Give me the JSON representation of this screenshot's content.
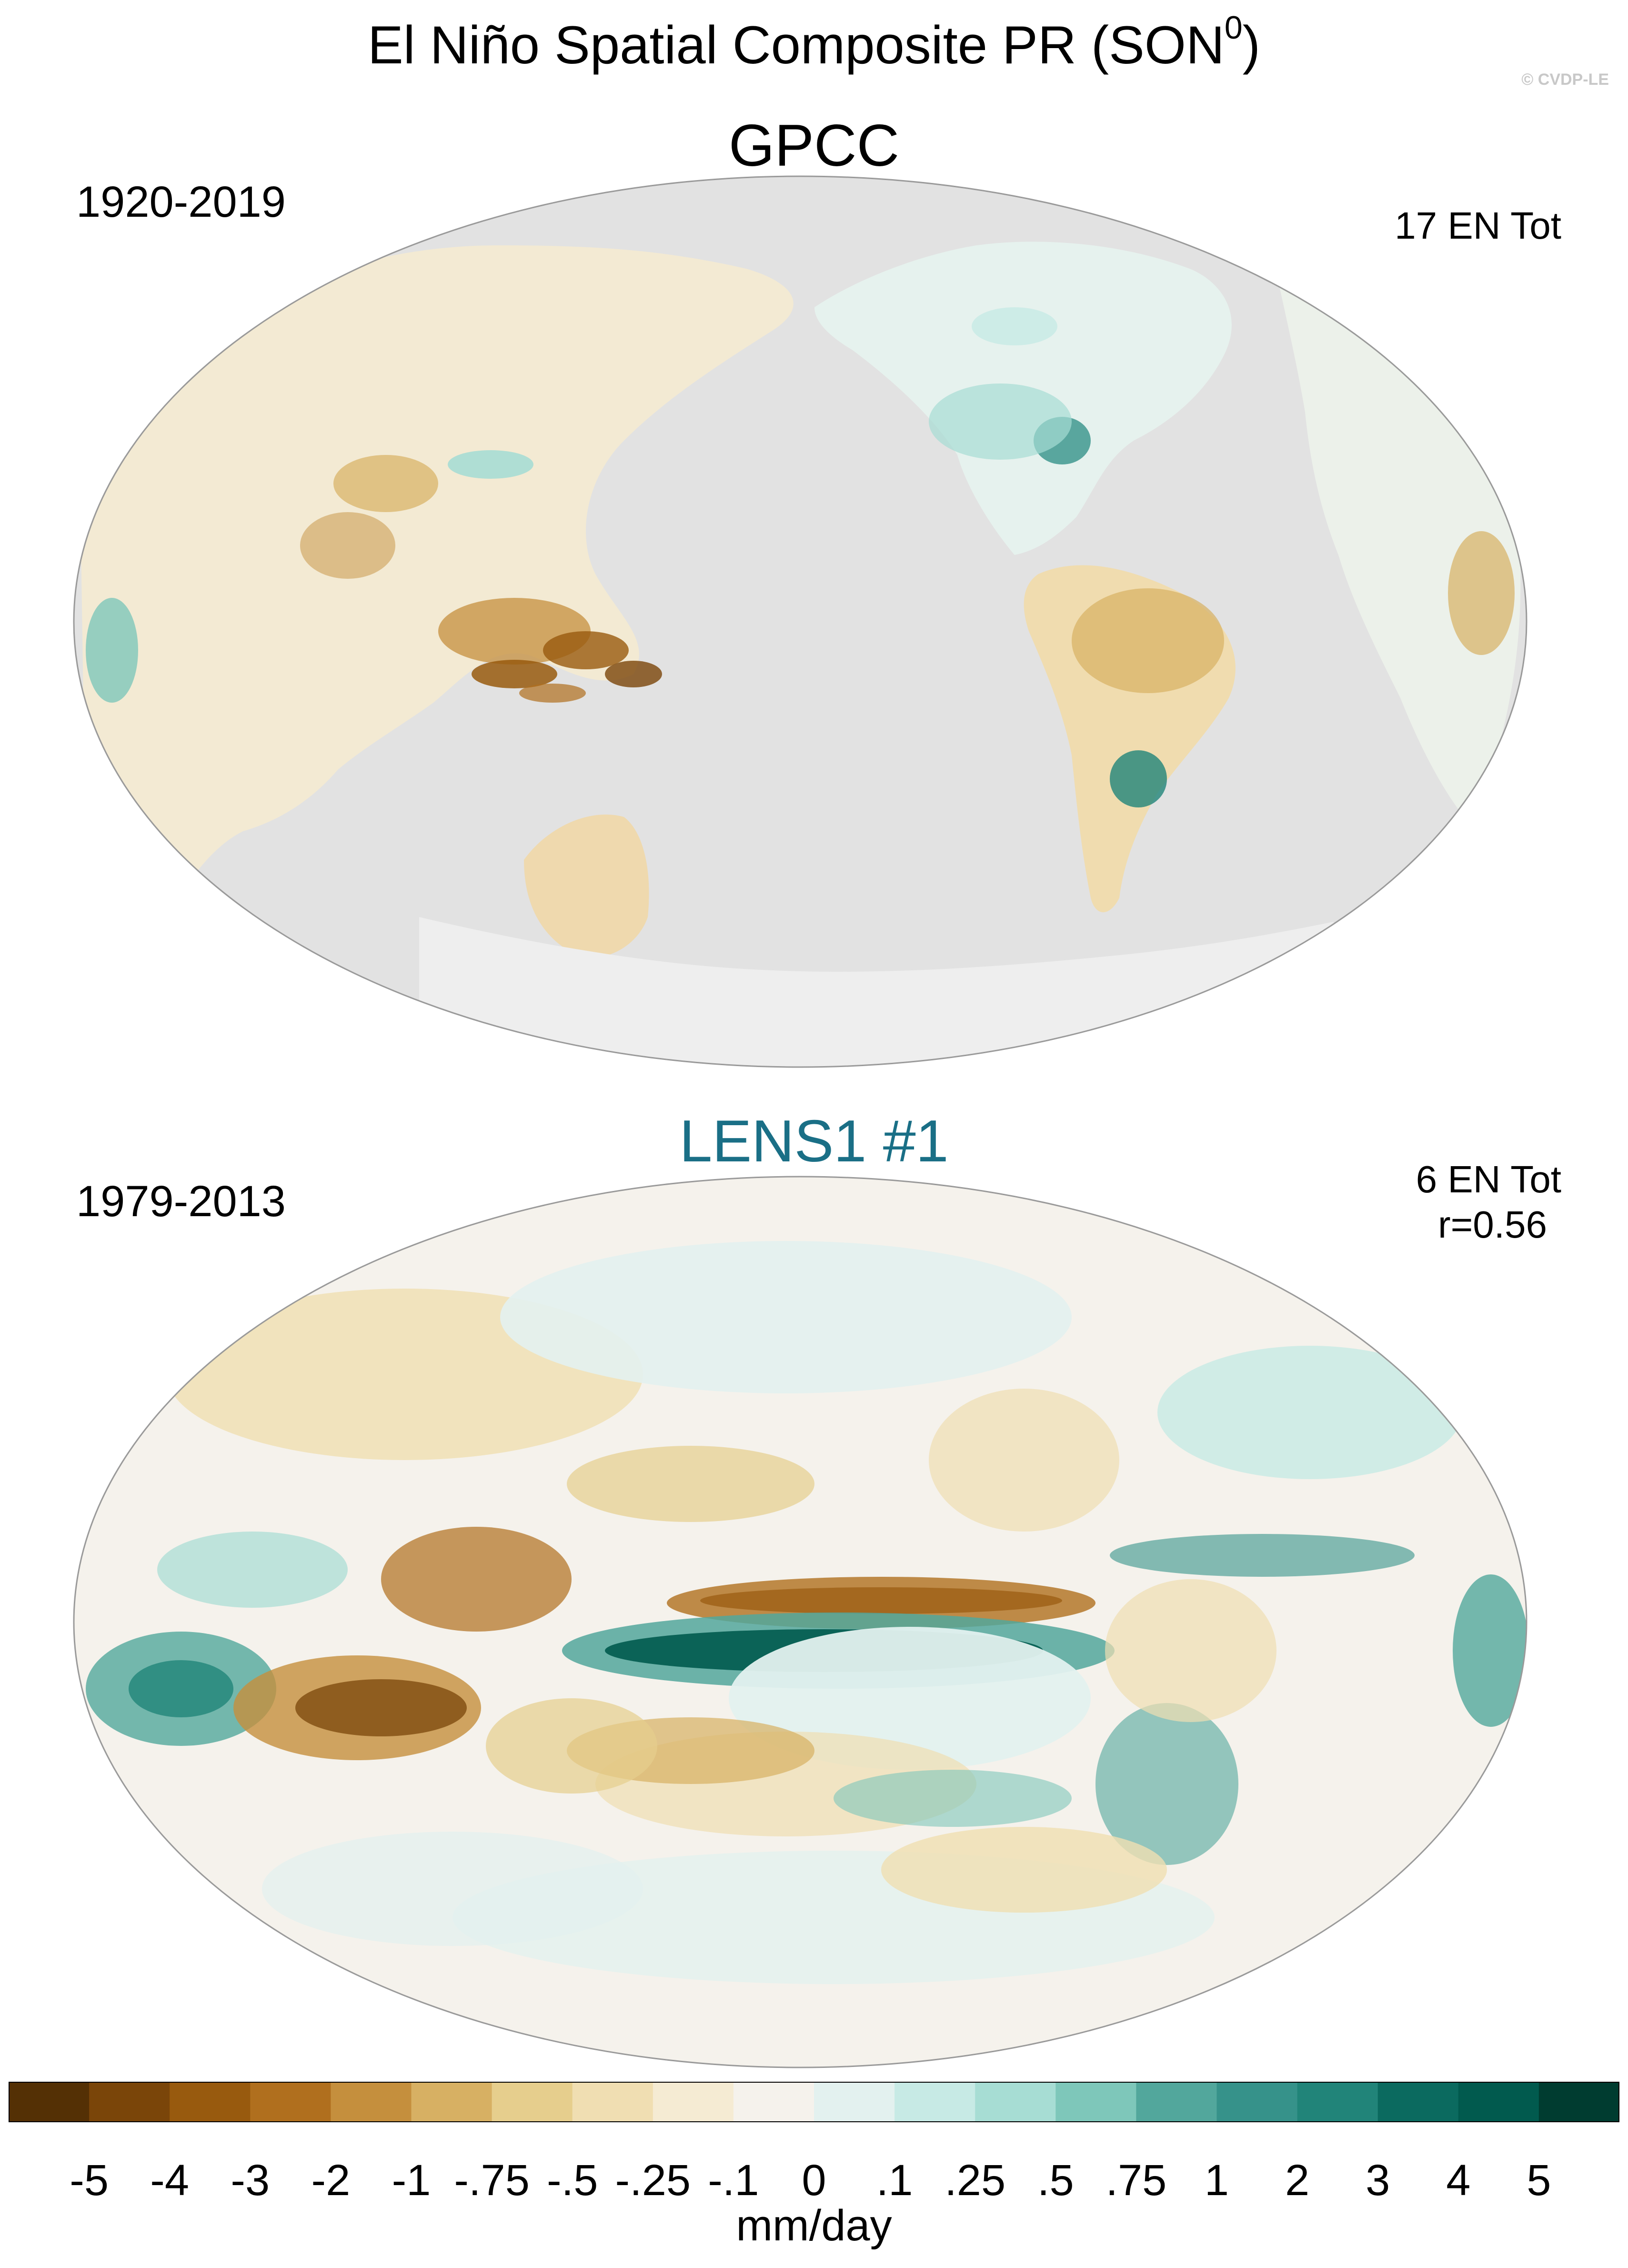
{
  "figure": {
    "title": "El Niño Spatial Composite PR (SON",
    "title_superscript": "0",
    "title_suffix": ")",
    "watermark": "© CVDP-LE"
  },
  "panels": [
    {
      "title": "GPCC",
      "title_color": "#000000",
      "period": "1920-2019",
      "event_count": "17 EN Tot",
      "pattern_correlation": "",
      "missing_color": "#e2e2e2"
    },
    {
      "title": "LENS1 #1",
      "title_color": "#1a6f86",
      "period": "1979-2013",
      "event_count": "6 EN Tot",
      "pattern_correlation": "r=0.56",
      "missing_color": ""
    }
  ],
  "colorbar": {
    "units": "mm/day",
    "tick_labels": [
      "-5",
      "-4",
      "-3",
      "-2",
      "-1",
      "-.75",
      "-.5",
      "-.25",
      "-.1",
      "0",
      ".1",
      ".25",
      ".5",
      ".75",
      "1",
      "2",
      "3",
      "4",
      "5"
    ],
    "colors": [
      "#543005",
      "#7a4509",
      "#985a0e",
      "#b06f1e",
      "#c58f3d",
      "#d7b063",
      "#e6ce8d",
      "#f0deb2",
      "#f5ebd3",
      "#f5f2ec",
      "#e3f1ef",
      "#c7eae5",
      "#a7ddd4",
      "#7ec7ba",
      "#52a79c",
      "#36928a",
      "#218479",
      "#0b6a5f",
      "#015a4e",
      "#003c30"
    ]
  }
}
